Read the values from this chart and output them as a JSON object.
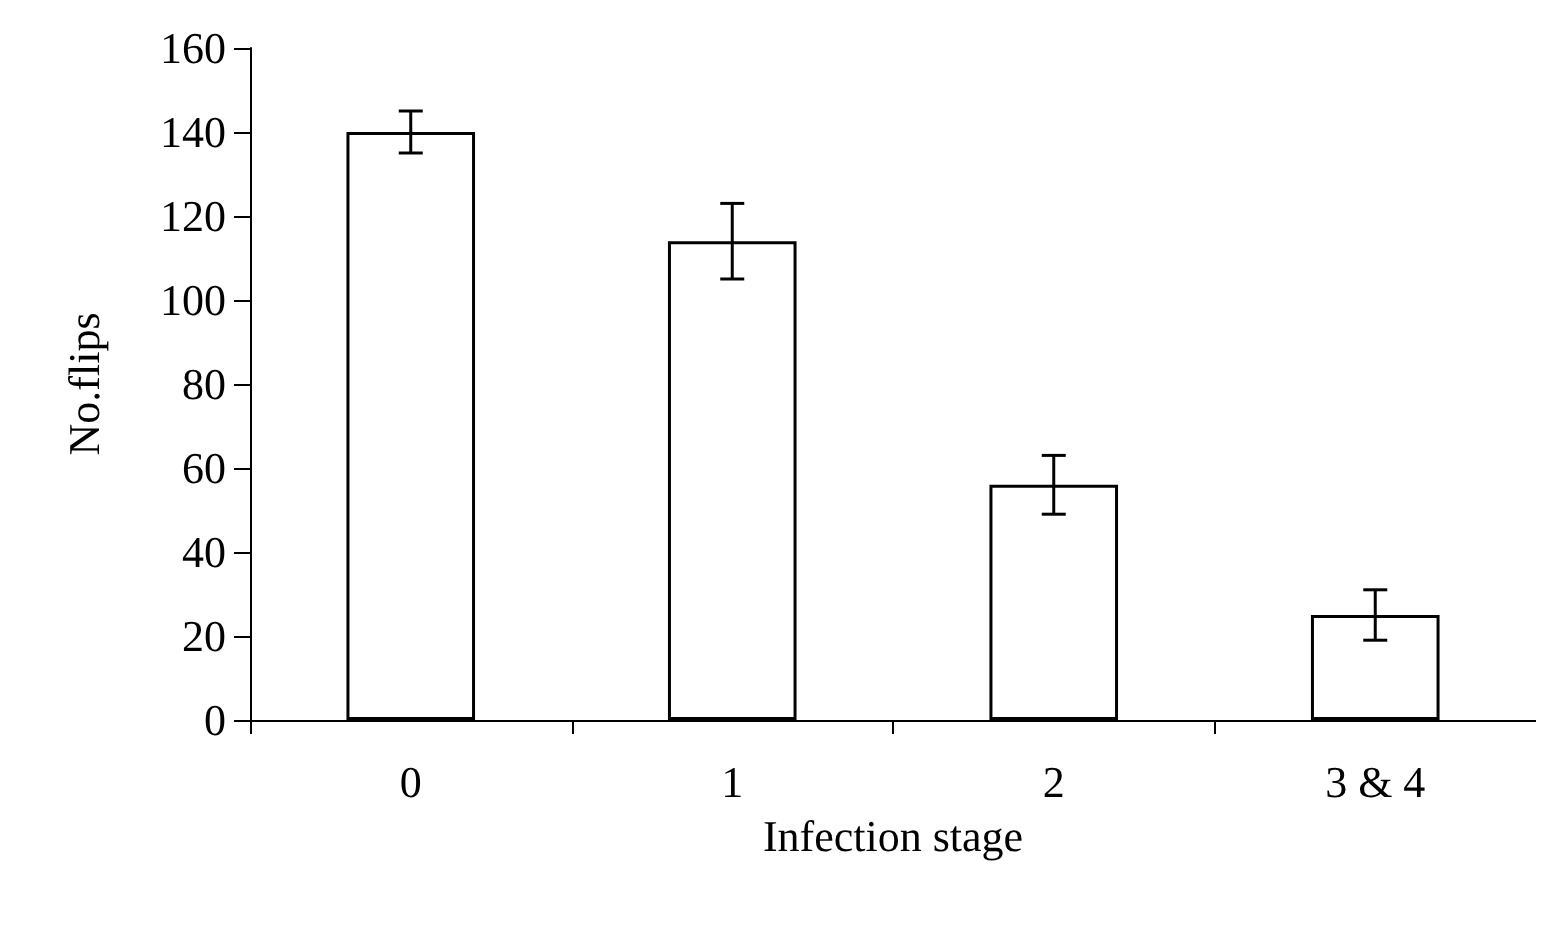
{
  "chart_data": {
    "type": "bar",
    "xlabel": "Infection stage",
    "ylabel": "No.flips",
    "categories": [
      "0",
      "1",
      "2",
      "3 & 4"
    ],
    "values": [
      140,
      114,
      56,
      25
    ],
    "errors": [
      5,
      9,
      7,
      6
    ],
    "color": "#ffffff",
    "ylim": [
      0,
      160
    ],
    "yticks": [
      0,
      20,
      40,
      60,
      80,
      100,
      120,
      140,
      160
    ],
    "grid": false
  }
}
